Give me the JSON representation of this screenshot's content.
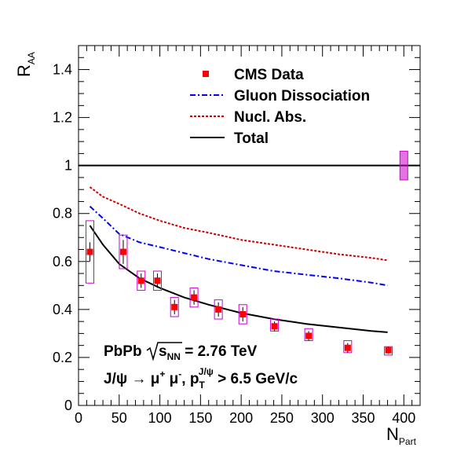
{
  "chart_data": {
    "type": "scatter",
    "xlabel_main": "N",
    "xlabel_sub": "Part",
    "ylabel_main": "R",
    "ylabel_sub": "AA",
    "xlim": [
      0,
      420
    ],
    "ylim": [
      0,
      1.5
    ],
    "x_ticks": [
      0,
      50,
      100,
      150,
      200,
      250,
      300,
      350,
      400
    ],
    "y_ticks": [
      0,
      0.2,
      0.4,
      0.6,
      0.8,
      1,
      1.2,
      1.4
    ],
    "y_tick_labels": [
      "0",
      "0.2",
      "0.4",
      "0.6",
      "0.8",
      "1",
      "1.2",
      "1.4"
    ],
    "grid": false,
    "legend_position": "top-center",
    "legend": [
      {
        "label": "CMS Data",
        "kind": "marker",
        "color": "#ff0000"
      },
      {
        "label": "Gluon Dissociation",
        "kind": "dashdot",
        "color": "#0000ff"
      },
      {
        "label": "Nucl. Abs.",
        "kind": "dotted",
        "color": "#cc0000"
      },
      {
        "label": "Total",
        "kind": "solid",
        "color": "#000000"
      }
    ],
    "data_points": [
      {
        "x": 14,
        "y": 0.64,
        "err": 0.04,
        "sys_low": 0.51,
        "sys_high": 0.77
      },
      {
        "x": 55,
        "y": 0.64,
        "err": 0.05,
        "sys_low": 0.57,
        "sys_high": 0.71
      },
      {
        "x": 77,
        "y": 0.52,
        "err": 0.03,
        "sys_low": 0.48,
        "sys_high": 0.56
      },
      {
        "x": 97,
        "y": 0.52,
        "err": 0.03,
        "sys_low": 0.48,
        "sys_high": 0.56
      },
      {
        "x": 118,
        "y": 0.41,
        "err": 0.03,
        "sys_low": 0.37,
        "sys_high": 0.45
      },
      {
        "x": 142,
        "y": 0.45,
        "err": 0.03,
        "sys_low": 0.41,
        "sys_high": 0.49
      },
      {
        "x": 172,
        "y": 0.4,
        "err": 0.03,
        "sys_low": 0.36,
        "sys_high": 0.44
      },
      {
        "x": 202,
        "y": 0.38,
        "err": 0.03,
        "sys_low": 0.34,
        "sys_high": 0.42
      },
      {
        "x": 241,
        "y": 0.33,
        "err": 0.02,
        "sys_low": 0.31,
        "sys_high": 0.36
      },
      {
        "x": 283,
        "y": 0.29,
        "err": 0.02,
        "sys_low": 0.27,
        "sys_high": 0.32
      },
      {
        "x": 331,
        "y": 0.24,
        "err": 0.02,
        "sys_low": 0.22,
        "sys_high": 0.27
      },
      {
        "x": 381,
        "y": 0.23,
        "err": 0.015,
        "sys_low": 0.21,
        "sys_high": 0.245
      }
    ],
    "series": [
      {
        "name": "Gluon Dissociation",
        "color": "#0000ff",
        "style": "dashdot",
        "x": [
          14,
          30,
          50,
          75,
          100,
          130,
          160,
          200,
          240,
          280,
          320,
          360,
          380
        ],
        "values": [
          0.83,
          0.78,
          0.715,
          0.68,
          0.66,
          0.635,
          0.61,
          0.585,
          0.56,
          0.545,
          0.53,
          0.512,
          0.5
        ]
      },
      {
        "name": "Nucl. Abs.",
        "color": "#cc0000",
        "style": "dotted",
        "x": [
          14,
          30,
          50,
          75,
          100,
          130,
          160,
          200,
          240,
          280,
          320,
          360,
          380
        ],
        "values": [
          0.91,
          0.87,
          0.84,
          0.8,
          0.77,
          0.74,
          0.72,
          0.69,
          0.67,
          0.65,
          0.63,
          0.615,
          0.605
        ]
      },
      {
        "name": "Total",
        "color": "#000000",
        "style": "solid",
        "x": [
          14,
          30,
          50,
          75,
          100,
          130,
          160,
          200,
          240,
          280,
          320,
          360,
          380
        ],
        "values": [
          0.75,
          0.67,
          0.59,
          0.53,
          0.49,
          0.45,
          0.42,
          0.385,
          0.36,
          0.34,
          0.325,
          0.31,
          0.305
        ]
      }
    ],
    "reference_line": {
      "y": 1.0,
      "color": "#000000"
    },
    "global_uncertainty": {
      "x": 400,
      "y_low": 0.94,
      "y_high": 1.06,
      "color": "#cc00cc"
    },
    "annotations": {
      "line1_a": "PbPb",
      "line1_b": "s",
      "line1_b_sub": "NN",
      "line1_c": " = 2.76 TeV",
      "line2_a": "J/ψ → μ",
      "line2_sup1": "+",
      "line2_b": " μ",
      "line2_sup2": "-",
      "line2_c": ", p",
      "line2_sub": "T",
      "line2_sup3": "J/ψ",
      "line2_d": " > 6.5 GeV/c"
    }
  }
}
